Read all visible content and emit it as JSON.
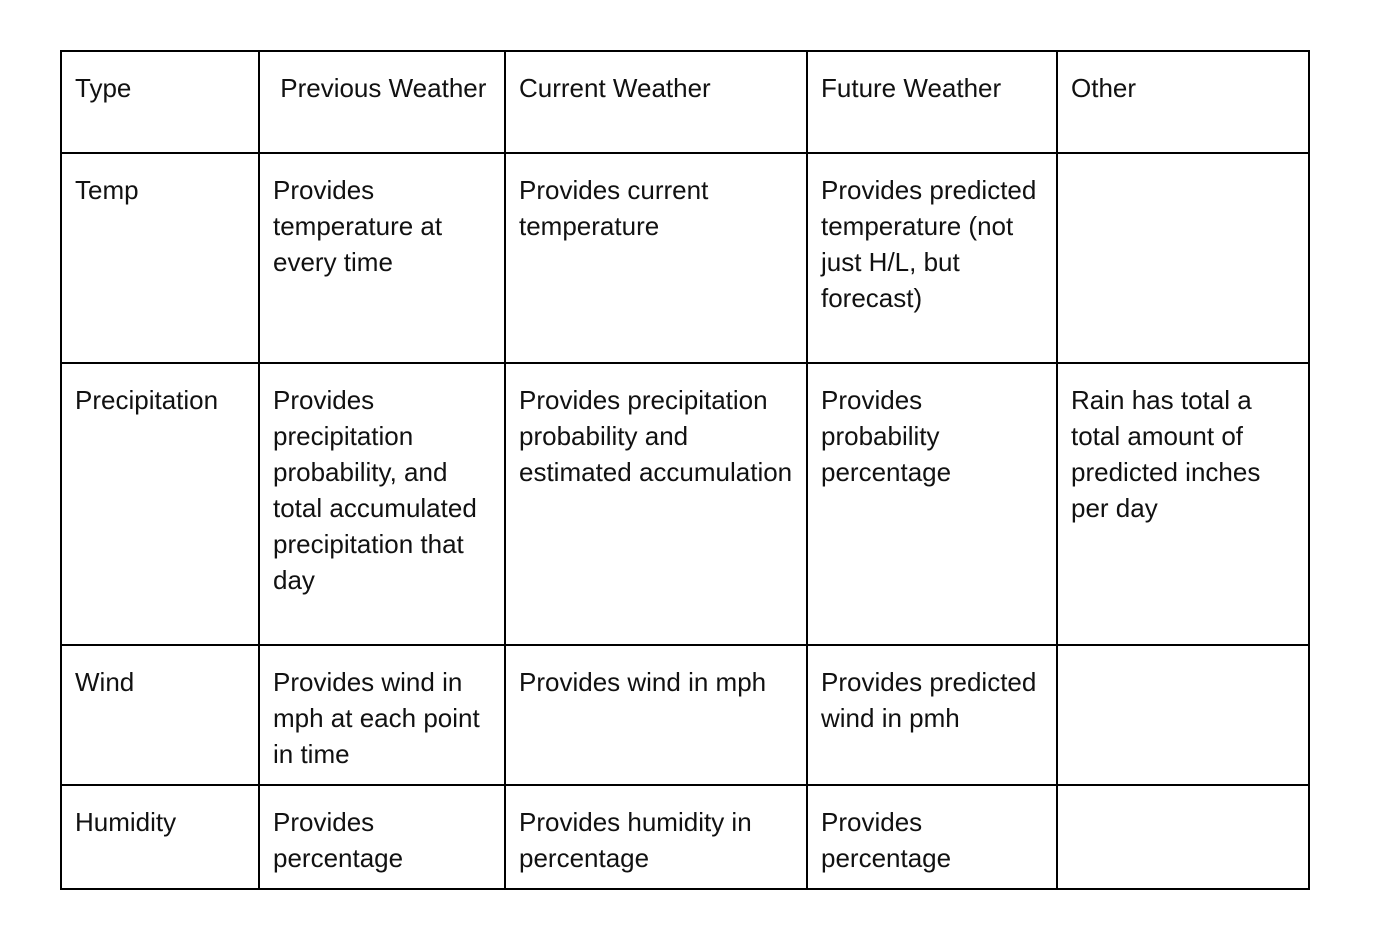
{
  "table": {
    "headers": [
      "Type",
      " Previous Weather",
      "Current Weather",
      "Future Weather",
      "Other"
    ],
    "rows": [
      [
        "Temp",
        "Provides temperature at every time",
        "Provides current temperature",
        "Provides predicted temperature (not just H/L, but forecast)",
        ""
      ],
      [
        "Precipitation",
        "Provides precipitation probability, and total accumulated precipitation that day",
        "Provides precipitation probability and estimated accumulation",
        "Provides probability percentage",
        "Rain has total a total amount of predicted inches per day"
      ],
      [
        "Wind",
        "Provides wind in mph at each point in time",
        "Provides wind in mph",
        "Provides predicted wind in pmh",
        ""
      ],
      [
        "Humidity",
        "Provides percentage",
        "Provides humidity in percentage",
        "Provides percentage",
        ""
      ]
    ]
  }
}
